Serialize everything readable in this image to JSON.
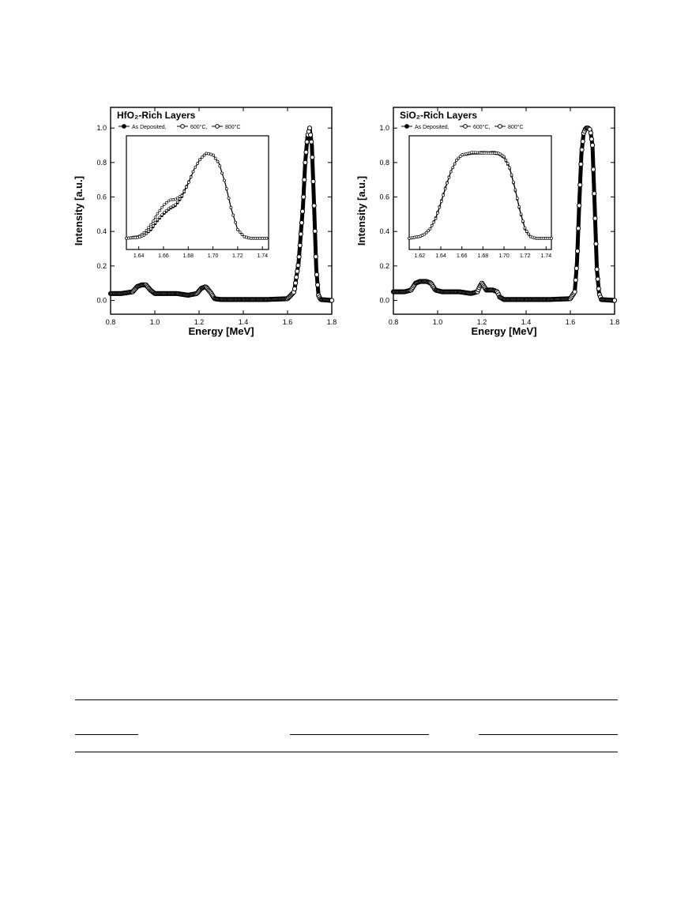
{
  "chart_data": [
    {
      "type": "line",
      "title": "HfO₂-Rich Layers",
      "xlabel": "Energy [MeV]",
      "ylabel": "Intensity [a.u.]",
      "xlim": [
        0.8,
        1.8
      ],
      "ylim": [
        -0.08,
        1.12
      ],
      "xticks": [
        "0.8",
        "1.0",
        "1.2",
        "1.4",
        "1.6",
        "1.8"
      ],
      "yticks": [
        "0.0",
        "0.2",
        "0.4",
        "0.6",
        "0.8",
        "1.0"
      ],
      "legend": [
        "As Deposited,",
        "600°C,",
        "800°C"
      ],
      "legend_placement": "top-left",
      "grid": false,
      "series": [
        {
          "x": [
            0.8,
            0.85,
            0.9,
            0.92,
            0.94,
            0.96,
            0.98,
            1.0,
            1.05,
            1.1,
            1.15,
            1.19,
            1.21,
            1.23,
            1.25,
            1.27,
            1.3,
            1.4,
            1.5,
            1.6,
            1.63,
            1.65,
            1.67,
            1.68,
            1.69,
            1.7,
            1.71,
            1.72,
            1.73,
            1.74,
            1.75,
            1.8
          ],
          "y": [
            0.04,
            0.04,
            0.05,
            0.08,
            0.09,
            0.09,
            0.06,
            0.04,
            0.04,
            0.04,
            0.03,
            0.04,
            0.07,
            0.08,
            0.05,
            0.01,
            0.005,
            0.005,
            0.005,
            0.01,
            0.05,
            0.22,
            0.55,
            0.8,
            0.95,
            1.0,
            0.9,
            0.55,
            0.18,
            0.03,
            0.005,
            0.0
          ]
        }
      ],
      "inset": {
        "xlim": [
          1.63,
          1.745
        ],
        "ylim": [
          0.0,
          1.0
        ],
        "xticks": [
          "1.64",
          "1.66",
          "1.68",
          "1.70",
          "1.72",
          "1.74"
        ],
        "series": [
          {
            "name": "As Deposited,",
            "x": [
              1.63,
              1.64,
              1.645,
              1.65,
              1.655,
              1.66,
              1.665,
              1.67,
              1.675,
              1.68,
              1.685,
              1.69,
              1.695,
              1.7,
              1.705,
              1.71,
              1.715,
              1.72,
              1.725,
              1.73,
              1.745
            ],
            "y": [
              0.02,
              0.03,
              0.06,
              0.12,
              0.22,
              0.3,
              0.36,
              0.4,
              0.5,
              0.65,
              0.82,
              0.94,
              1.0,
              0.98,
              0.88,
              0.65,
              0.35,
              0.12,
              0.04,
              0.02,
              0.02
            ]
          },
          {
            "name": "600°C,",
            "x": [
              1.63,
              1.64,
              1.645,
              1.65,
              1.655,
              1.66,
              1.665,
              1.67,
              1.675,
              1.68,
              1.685,
              1.69,
              1.695,
              1.7,
              1.705,
              1.71,
              1.715,
              1.72,
              1.725,
              1.73,
              1.745
            ],
            "y": [
              0.02,
              0.04,
              0.09,
              0.18,
              0.3,
              0.4,
              0.46,
              0.47,
              0.52,
              0.66,
              0.82,
              0.94,
              1.0,
              0.98,
              0.88,
              0.65,
              0.35,
              0.12,
              0.04,
              0.02,
              0.02
            ]
          },
          {
            "name": "800°C",
            "x": [
              1.63,
              1.64,
              1.645,
              1.65,
              1.655,
              1.66,
              1.665,
              1.67,
              1.675,
              1.68,
              1.685,
              1.69,
              1.695,
              1.7,
              1.705,
              1.71,
              1.715,
              1.72,
              1.725,
              1.73,
              1.745
            ],
            "y": [
              0.02,
              0.03,
              0.06,
              0.13,
              0.23,
              0.31,
              0.37,
              0.41,
              0.51,
              0.65,
              0.82,
              0.94,
              1.0,
              0.98,
              0.88,
              0.65,
              0.35,
              0.12,
              0.04,
              0.02,
              0.02
            ]
          }
        ]
      }
    },
    {
      "type": "line",
      "title": "SiO₂-Rich Layers",
      "xlabel": "Energy [MeV]",
      "ylabel": "Intensity [a.u.]",
      "xlim": [
        0.8,
        1.8
      ],
      "ylim": [
        -0.08,
        1.12
      ],
      "xticks": [
        "0.8",
        "1.0",
        "1.2",
        "1.4",
        "1.6",
        "1.8"
      ],
      "yticks": [
        "0.0",
        "0.2",
        "0.4",
        "0.6",
        "0.8",
        "1.0"
      ],
      "legend": [
        "As Deposited,",
        "600°C,",
        "800°C"
      ],
      "legend_placement": "top-left",
      "grid": false,
      "series": [
        {
          "x": [
            0.8,
            0.85,
            0.88,
            0.9,
            0.92,
            0.95,
            0.97,
            0.99,
            1.02,
            1.1,
            1.15,
            1.18,
            1.19,
            1.2,
            1.21,
            1.22,
            1.25,
            1.27,
            1.28,
            1.3,
            1.4,
            1.5,
            1.6,
            1.62,
            1.63,
            1.64,
            1.65,
            1.66,
            1.67,
            1.68,
            1.69,
            1.7,
            1.71,
            1.72,
            1.73,
            1.74,
            1.8
          ],
          "y": [
            0.05,
            0.05,
            0.06,
            0.1,
            0.11,
            0.11,
            0.1,
            0.06,
            0.05,
            0.05,
            0.04,
            0.05,
            0.08,
            0.1,
            0.08,
            0.06,
            0.06,
            0.05,
            0.02,
            0.005,
            0.005,
            0.005,
            0.01,
            0.05,
            0.22,
            0.55,
            0.85,
            0.97,
            1.0,
            1.0,
            0.99,
            0.9,
            0.55,
            0.18,
            0.04,
            0.005,
            0.0
          ]
        }
      ],
      "inset": {
        "xlim": [
          1.61,
          1.745
        ],
        "ylim": [
          0.0,
          1.0
        ],
        "xticks": [
          "1.62",
          "1.64",
          "1.66",
          "1.68",
          "1.70",
          "1.72",
          "1.74"
        ],
        "series": [
          {
            "name": "As Deposited,",
            "x": [
              1.61,
              1.62,
              1.625,
              1.63,
              1.635,
              1.64,
              1.645,
              1.65,
              1.655,
              1.66,
              1.67,
              1.68,
              1.69,
              1.695,
              1.7,
              1.705,
              1.71,
              1.715,
              1.72,
              1.725,
              1.73,
              1.745
            ],
            "y": [
              0.02,
              0.04,
              0.07,
              0.13,
              0.24,
              0.42,
              0.62,
              0.8,
              0.92,
              0.98,
              1.0,
              1.0,
              1.01,
              1.0,
              0.96,
              0.85,
              0.62,
              0.35,
              0.13,
              0.04,
              0.02,
              0.02
            ]
          },
          {
            "name": "600°C,",
            "x": [
              1.61,
              1.62,
              1.625,
              1.63,
              1.635,
              1.64,
              1.645,
              1.65,
              1.655,
              1.66,
              1.67,
              1.68,
              1.69,
              1.695,
              1.7,
              1.705,
              1.71,
              1.715,
              1.72,
              1.725,
              1.73,
              1.745
            ],
            "y": [
              0.02,
              0.04,
              0.07,
              0.13,
              0.25,
              0.43,
              0.63,
              0.8,
              0.92,
              0.98,
              1.0,
              1.01,
              1.0,
              0.99,
              0.95,
              0.84,
              0.61,
              0.34,
              0.12,
              0.04,
              0.02,
              0.02
            ]
          },
          {
            "name": "800°C",
            "x": [
              1.61,
              1.62,
              1.625,
              1.63,
              1.635,
              1.64,
              1.645,
              1.65,
              1.655,
              1.66,
              1.67,
              1.68,
              1.69,
              1.695,
              1.7,
              1.705,
              1.71,
              1.715,
              1.72,
              1.725,
              1.73,
              1.745
            ],
            "y": [
              0.02,
              0.04,
              0.07,
              0.13,
              0.24,
              0.42,
              0.62,
              0.8,
              0.92,
              0.98,
              1.01,
              1.0,
              1.0,
              1.0,
              0.96,
              0.85,
              0.62,
              0.35,
              0.13,
              0.04,
              0.02,
              0.02
            ]
          }
        ]
      }
    }
  ]
}
